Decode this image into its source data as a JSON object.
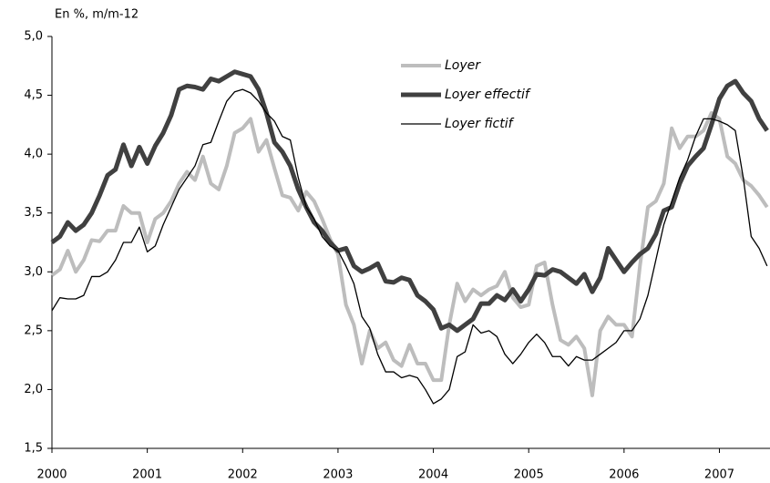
{
  "chart_data": {
    "type": "line",
    "axis_label": "En %, m/m-12",
    "categories": [
      "2000",
      null,
      null,
      null,
      null,
      null,
      null,
      null,
      null,
      null,
      null,
      null,
      "2001",
      null,
      null,
      null,
      null,
      null,
      null,
      null,
      null,
      null,
      null,
      null,
      "2002",
      null,
      null,
      null,
      null,
      null,
      null,
      null,
      null,
      null,
      null,
      null,
      "2003",
      null,
      null,
      null,
      null,
      null,
      null,
      null,
      null,
      null,
      null,
      null,
      "2004",
      null,
      null,
      null,
      null,
      null,
      null,
      null,
      null,
      null,
      null,
      null,
      "2005",
      null,
      null,
      null,
      null,
      null,
      null,
      null,
      null,
      null,
      null,
      null,
      "2006",
      null,
      null,
      null,
      null,
      null,
      null,
      null,
      null,
      null,
      null,
      null,
      "2007",
      null,
      null,
      null,
      null,
      null,
      null
    ],
    "series": [
      {
        "name": "Loyer",
        "color": "#bdbdbd",
        "width": 4,
        "values": [
          2.97,
          3.02,
          3.18,
          3.0,
          3.1,
          3.27,
          3.26,
          3.35,
          3.35,
          3.56,
          3.5,
          3.5,
          3.25,
          3.45,
          3.5,
          3.6,
          3.75,
          3.85,
          3.78,
          3.98,
          3.75,
          3.7,
          3.9,
          4.18,
          4.22,
          4.3,
          4.02,
          4.12,
          3.88,
          3.65,
          3.63,
          3.52,
          3.68,
          3.6,
          3.45,
          3.28,
          3.15,
          2.72,
          2.55,
          2.22,
          2.5,
          2.35,
          2.4,
          2.25,
          2.2,
          2.38,
          2.22,
          2.22,
          2.08,
          2.08,
          2.55,
          2.9,
          2.75,
          2.85,
          2.8,
          2.85,
          2.88,
          3.0,
          2.78,
          2.7,
          2.72,
          3.05,
          3.08,
          2.72,
          2.42,
          2.38,
          2.45,
          2.35,
          1.95,
          2.5,
          2.62,
          2.55,
          2.55,
          2.45,
          3.05,
          3.55,
          3.6,
          3.75,
          4.22,
          4.05,
          4.15,
          4.15,
          4.2,
          4.35,
          4.3,
          3.98,
          3.92,
          3.78,
          3.73,
          3.65,
          3.55
        ]
      },
      {
        "name": "Loyer effectif",
        "color": "#404040",
        "width": 5,
        "values": [
          3.25,
          3.3,
          3.42,
          3.35,
          3.4,
          3.5,
          3.65,
          3.82,
          3.87,
          4.08,
          3.9,
          4.06,
          3.92,
          4.07,
          4.18,
          4.33,
          4.55,
          4.58,
          4.57,
          4.55,
          4.64,
          4.62,
          4.66,
          4.7,
          4.68,
          4.66,
          4.55,
          4.35,
          4.1,
          4.02,
          3.9,
          3.7,
          3.55,
          3.42,
          3.35,
          3.25,
          3.18,
          3.2,
          3.05,
          3.0,
          3.03,
          3.07,
          2.92,
          2.91,
          2.95,
          2.93,
          2.8,
          2.75,
          2.68,
          2.52,
          2.55,
          2.5,
          2.55,
          2.6,
          2.73,
          2.73,
          2.8,
          2.76,
          2.85,
          2.75,
          2.85,
          2.98,
          2.97,
          3.02,
          3.0,
          2.95,
          2.9,
          2.98,
          2.83,
          2.95,
          3.2,
          3.1,
          3.0,
          3.08,
          3.15,
          3.2,
          3.32,
          3.52,
          3.55,
          3.75,
          3.9,
          3.98,
          4.05,
          4.25,
          4.47,
          4.58,
          4.62,
          4.52,
          4.45,
          4.3,
          4.2
        ]
      },
      {
        "name": "Loyer fictif",
        "color": "#000000",
        "width": 1.3,
        "values": [
          2.67,
          2.78,
          2.77,
          2.77,
          2.8,
          2.96,
          2.96,
          3.0,
          3.1,
          3.25,
          3.25,
          3.38,
          3.17,
          3.22,
          3.4,
          3.55,
          3.7,
          3.8,
          3.9,
          4.08,
          4.1,
          4.28,
          4.45,
          4.53,
          4.55,
          4.52,
          4.45,
          4.35,
          4.28,
          4.15,
          4.12,
          3.8,
          3.55,
          3.45,
          3.3,
          3.22,
          3.18,
          3.05,
          2.9,
          2.62,
          2.52,
          2.3,
          2.15,
          2.15,
          2.1,
          2.12,
          2.1,
          2.0,
          1.88,
          1.92,
          2.0,
          2.28,
          2.32,
          2.55,
          2.48,
          2.5,
          2.45,
          2.3,
          2.22,
          2.3,
          2.4,
          2.47,
          2.4,
          2.28,
          2.28,
          2.2,
          2.28,
          2.25,
          2.25,
          2.3,
          2.35,
          2.4,
          2.5,
          2.5,
          2.6,
          2.8,
          3.1,
          3.4,
          3.6,
          3.8,
          3.95,
          4.15,
          4.3,
          4.3,
          4.28,
          4.25,
          4.2,
          3.8,
          3.3,
          3.2,
          3.05
        ]
      }
    ],
    "ylim": [
      1.5,
      5.0
    ],
    "yticks": [
      {
        "value": 1.5,
        "label": "1,5"
      },
      {
        "value": 2.0,
        "label": "2,0"
      },
      {
        "value": 2.5,
        "label": "2,5"
      },
      {
        "value": 3.0,
        "label": "3,0"
      },
      {
        "value": 3.5,
        "label": "3,5"
      },
      {
        "value": 4.0,
        "label": "4,0"
      },
      {
        "value": 4.5,
        "label": "4,5"
      },
      {
        "value": 5.0,
        "label": "5,0"
      }
    ],
    "grid": false,
    "legend": "top-center"
  }
}
